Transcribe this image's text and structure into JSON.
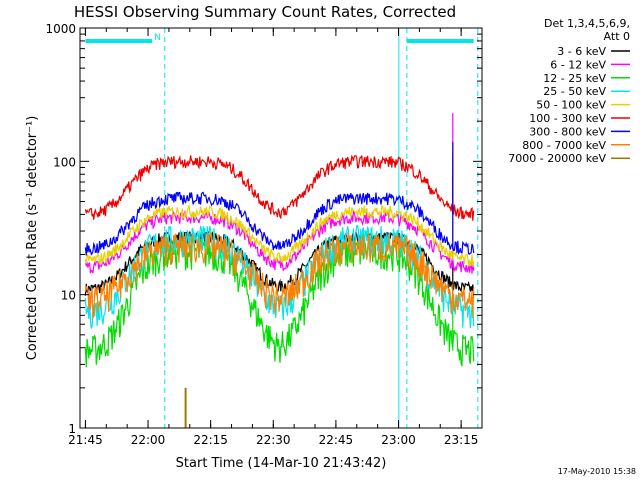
{
  "chart_data": {
    "type": "line",
    "title": "HESSI Observing Summary Count Rates, Corrected",
    "xlabel": "Start Time (14-Mar-10 21:43:42)",
    "ylabel": "Corrected Count Rate (s⁻¹ detector⁻¹)",
    "y_scale": "log",
    "xlim": [
      "21:43:42",
      "23:20:00"
    ],
    "ylim": [
      1,
      1000
    ],
    "x_ticks": [
      "21:45",
      "22:00",
      "22:15",
      "22:30",
      "22:45",
      "23:00",
      "23:15"
    ],
    "y_ticks": [
      "1",
      "10",
      "100",
      "1000"
    ],
    "grid": false,
    "legend_position": "right",
    "legend_header": [
      "Det 1,3,4,5,6,9,",
      "Att 0"
    ],
    "footer_date": "17-May-2010 15:38",
    "flags": {
      "color": "#00e5ee",
      "segments": [
        [
          "21:45",
          "22:01"
        ],
        [
          "23:02",
          "23:18"
        ]
      ],
      "label": "N",
      "label_time": "22:01",
      "boundaries": [
        "22:04",
        "23:02",
        "23:19"
      ]
    },
    "orbit": {
      "peak_times": [
        "22:10",
        "22:53"
      ],
      "spike_time": "23:13"
    },
    "series": [
      {
        "name": "3 - 6 keV",
        "color": "#000000",
        "low": 11,
        "high": 27,
        "spike": 115
      },
      {
        "name": "6 - 12 keV",
        "color": "#ff00ff",
        "low": 16,
        "high": 38,
        "spike": 230
      },
      {
        "name": "12 - 25 keV",
        "color": "#00dd00",
        "low": 3.8,
        "high": 21,
        "spike": 8
      },
      {
        "name": "25 - 50 keV",
        "color": "#00e5ee",
        "low": 7.5,
        "high": 26,
        "spike": 10
      },
      {
        "name": "50 - 100 keV",
        "color": "#e8d000",
        "low": 18,
        "high": 42,
        "spike": 50
      },
      {
        "name": "100 - 300 keV",
        "color": "#ee0000",
        "low": 40,
        "high": 100,
        "spike": 85
      },
      {
        "name": "300 - 800 keV",
        "color": "#0000ff",
        "low": 22,
        "high": 53,
        "spike": 140
      },
      {
        "name": "800 - 7000 keV",
        "color": "#ff8000",
        "low": 9,
        "high": 23,
        "spike": 12
      },
      {
        "name": "7000 - 20000 keV",
        "color": "#a07800",
        "low": 0,
        "high": 0,
        "spike": 2,
        "spike_time": "22:09"
      }
    ]
  }
}
